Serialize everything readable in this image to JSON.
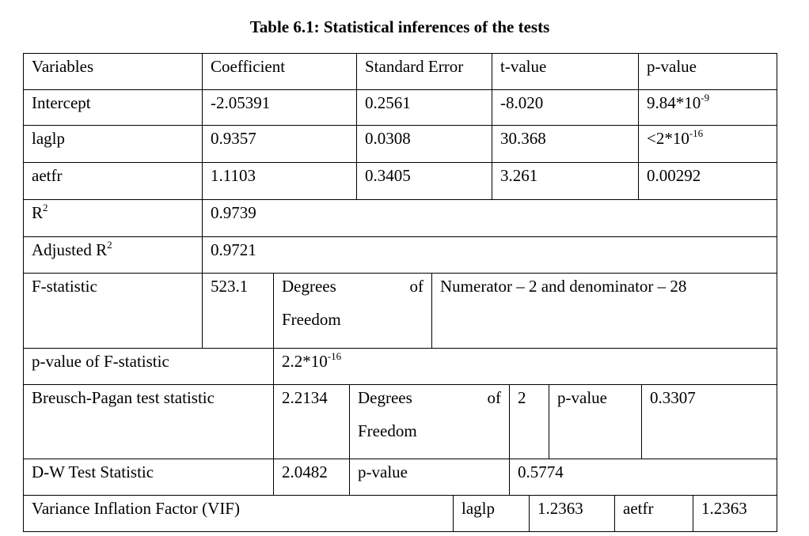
{
  "title": "Table 6.1: Statistical inferences of the tests",
  "table": {
    "rows": [
      [
        "Variables",
        "Coefficient",
        "Standard Error",
        "t-value",
        "p-value"
      ],
      [
        "Intercept",
        "-2.05391",
        "0.2561",
        "-8.020",
        {
          "text": "9.84*10",
          "sup": "-9"
        }
      ],
      [
        "laglp",
        "0.9357",
        "0.0308",
        "30.368",
        {
          "text": "<2*10",
          "sup": "-16"
        }
      ],
      [
        "aetfr",
        "1.1103",
        "0.3405",
        "3.261",
        "0.00292"
      ],
      [
        {
          "text": "R",
          "sup": "2"
        },
        "0.9739"
      ],
      [
        {
          "text": "Adjusted R",
          "sup": "2"
        },
        "0.9721"
      ],
      [
        "F-statistic",
        "523.1",
        {
          "lines": [
            "Degrees of",
            "Freedom"
          ]
        },
        "Numerator – 2 and denominator – 28"
      ],
      [
        "p-value of F-statistic",
        {
          "text": "2.2*10",
          "sup": "-16"
        }
      ],
      [
        "Breusch-Pagan test statistic",
        "2.2134",
        {
          "lines": [
            "Degrees of",
            "Freedom"
          ]
        },
        "2",
        "p-value",
        "0.3307"
      ],
      [
        "D-W Test Statistic",
        "2.0482",
        "p-value",
        "0.5774"
      ],
      [
        "Variance Inflation Factor (VIF)",
        "laglp",
        "1.2363",
        "aetfr",
        "1.2363"
      ]
    ]
  }
}
